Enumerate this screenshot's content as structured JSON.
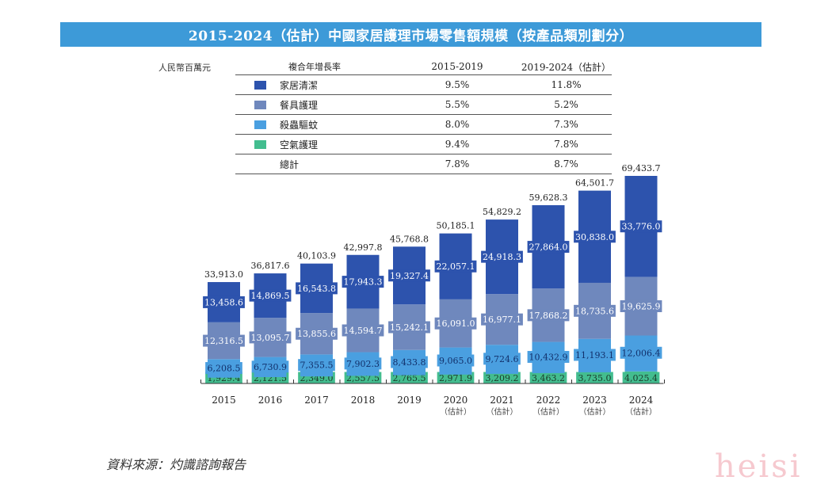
{
  "title": "2015-2024（估計）中國家居護理市場零售額規模（按產品類別劃分）",
  "unit_label": "人民幣百萬元",
  "cagr_table": {
    "header": {
      "label": "複合年增長率",
      "col1": "2015-2019",
      "col2": "2019-2024（估計）"
    },
    "rows": [
      {
        "name": "家居清潔",
        "color": "#2d53ad",
        "v1": "9.5%",
        "v2": "11.8%"
      },
      {
        "name": "餐具護理",
        "color": "#6f88bd",
        "v1": "5.5%",
        "v2": "5.2%"
      },
      {
        "name": "殺蟲驅蚊",
        "color": "#4a9fe0",
        "v1": "8.0%",
        "v2": "7.3%"
      },
      {
        "name": "空氣護理",
        "color": "#43bd8f",
        "v1": "9.4%",
        "v2": "7.8%"
      },
      {
        "name": "總計",
        "color": null,
        "v1": "7.8%",
        "v2": "8.7%"
      }
    ]
  },
  "chart_data": {
    "type": "bar",
    "stacked": true,
    "title": "2015-2024（估計）中國家居護理市場零售額規模（按產品類別劃分）",
    "ylabel": "人民幣百萬元",
    "xlabel": "",
    "categories": [
      "2015",
      "2016",
      "2017",
      "2018",
      "2019",
      "2020",
      "2021",
      "2022",
      "2023",
      "2024"
    ],
    "category_notes": [
      "",
      "",
      "",
      "",
      "",
      "（估計）",
      "（估計）",
      "（估計）",
      "（估計）",
      "（估計）"
    ],
    "series": [
      {
        "name": "空氣護理",
        "color": "#43bd8f",
        "values": [
          1929.4,
          2121.5,
          2349.0,
          2557.5,
          2765.5,
          2971.9,
          3209.2,
          3463.2,
          3735.0,
          4025.4
        ],
        "labels": [
          "1,929.4",
          "2,121.5",
          "2,349.0",
          "2,557.5",
          "2,765.5",
          "2,971.9",
          "3,209.2",
          "3,463.2",
          "3,735.0",
          "4,025.4"
        ]
      },
      {
        "name": "殺蟲驅蚊",
        "color": "#4a9fe0",
        "values": [
          6208.5,
          6730.9,
          7355.5,
          7902.3,
          8433.8,
          9065.0,
          9724.6,
          10432.9,
          11193.1,
          12006.4
        ],
        "labels": [
          "6,208.5",
          "6,730.9",
          "7,355.5",
          "7,902.3",
          "8,433.8",
          "9,065.0",
          "9,724.6",
          "10,432.9",
          "11,193.1",
          "12,006.4"
        ]
      },
      {
        "name": "餐具護理",
        "color": "#6f88bd",
        "values": [
          12316.5,
          13095.7,
          13855.6,
          14594.7,
          15242.1,
          16091.0,
          16977.1,
          17868.2,
          18735.6,
          19625.9
        ],
        "labels": [
          "12,316.5",
          "13,095.7",
          "13,855.6",
          "14,594.7",
          "15,242.1",
          "16,091.0",
          "16,977.1",
          "17,868.2",
          "18,735.6",
          "19,625.9"
        ]
      },
      {
        "name": "家居清潔",
        "color": "#2d53ad",
        "values": [
          13458.6,
          14869.5,
          16543.8,
          17943.3,
          19327.4,
          22057.1,
          24918.3,
          27864.0,
          30838.0,
          33776.0
        ],
        "labels": [
          "13,458.6",
          "14,869.5",
          "16,543.8",
          "17,943.3",
          "19,327.4",
          "22,057.1",
          "24,918.3",
          "27,864.0",
          "30,838.0",
          "33,776.0"
        ]
      }
    ],
    "totals": [
      33913.0,
      36817.6,
      40103.9,
      42997.8,
      45768.8,
      50185.1,
      54829.2,
      59628.3,
      64501.7,
      69433.7
    ],
    "total_labels": [
      "33,913.0",
      "36,817.6",
      "40,103.9",
      "42,997.8",
      "45,768.8",
      "50,185.1",
      "54,829.2",
      "59,628.3",
      "64,501.7",
      "69,433.7"
    ],
    "ylim": [
      0,
      70000
    ],
    "grid": false,
    "legend": "top (in CAGR table)"
  },
  "source": "資料來源：灼識諮詢報告",
  "watermark": "heisi"
}
